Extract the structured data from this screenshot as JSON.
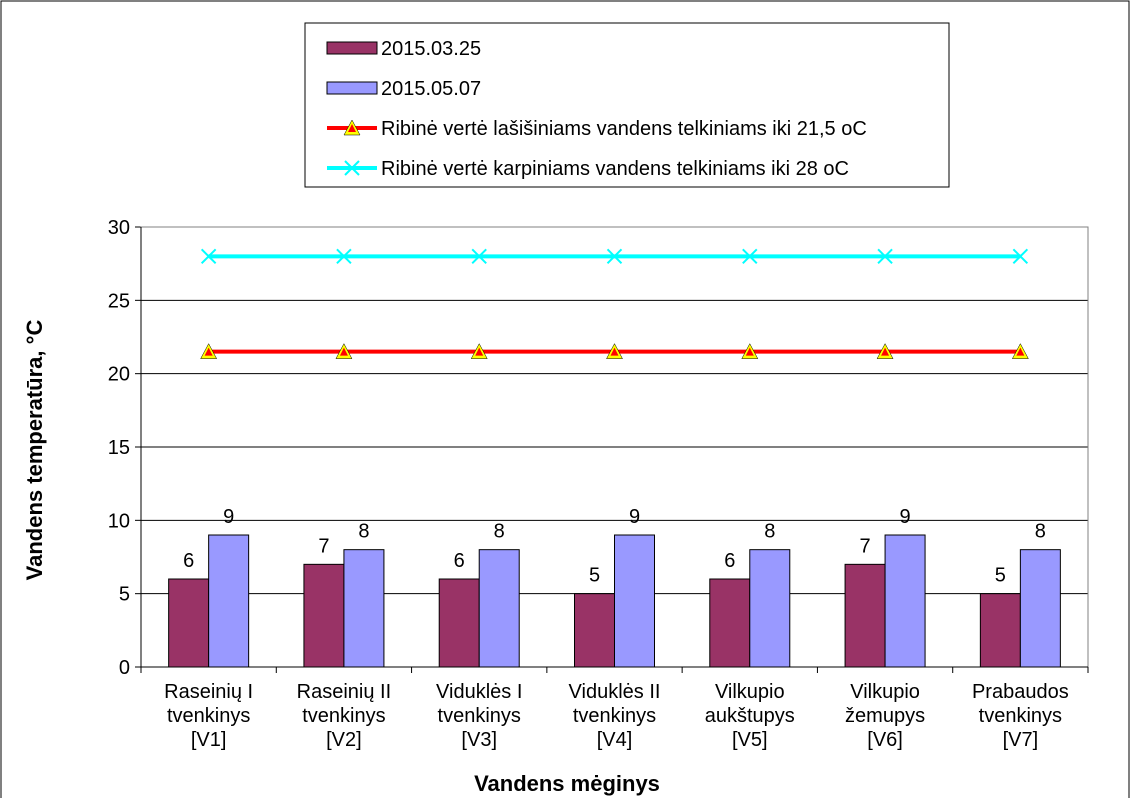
{
  "chart_data": {
    "type": "bar",
    "xlabel": "Vandens mėginys",
    "ylabel": "Vandens temperatūra, °C",
    "ylim": [
      0,
      30
    ],
    "yticks": [
      0,
      5,
      10,
      15,
      20,
      25,
      30
    ],
    "grid": true,
    "legend_position": "top",
    "categories": [
      [
        "Raseinių I",
        "tvenkinys",
        "[V1]"
      ],
      [
        "Raseinių II",
        "tvenkinys",
        "[V2]"
      ],
      [
        "Viduklės I",
        "tvenkinys",
        "[V3]"
      ],
      [
        "Viduklės II",
        "tvenkinys",
        "[V4]"
      ],
      [
        "Vilkupio",
        "aukštupys",
        "[V5]"
      ],
      [
        "Vilkupio",
        "žemupys",
        "[V6]"
      ],
      [
        "Prabaudos",
        "tvenkinys",
        "[V7]"
      ]
    ],
    "series": [
      {
        "name": "2015.03.25",
        "kind": "bar",
        "color": "#993366",
        "values": [
          6,
          7,
          6,
          5,
          6,
          7,
          5
        ]
      },
      {
        "name": "2015.05.07",
        "kind": "bar",
        "color": "#9999ff",
        "values": [
          9,
          8,
          8,
          9,
          8,
          9,
          8
        ]
      },
      {
        "name": "Ribinė vertė lašišiniams vandens telkiniams iki 21,5 oC",
        "kind": "line",
        "color": "#ff0000",
        "marker": "triangle",
        "marker_color": "#ffff00",
        "values": [
          21.5,
          21.5,
          21.5,
          21.5,
          21.5,
          21.5,
          21.5
        ]
      },
      {
        "name": "Ribinė vertė karpiniams vandens telkiniams iki 28 oC",
        "kind": "line",
        "color": "#00ffff",
        "marker": "x",
        "values": [
          28,
          28,
          28,
          28,
          28,
          28,
          28
        ]
      }
    ]
  }
}
